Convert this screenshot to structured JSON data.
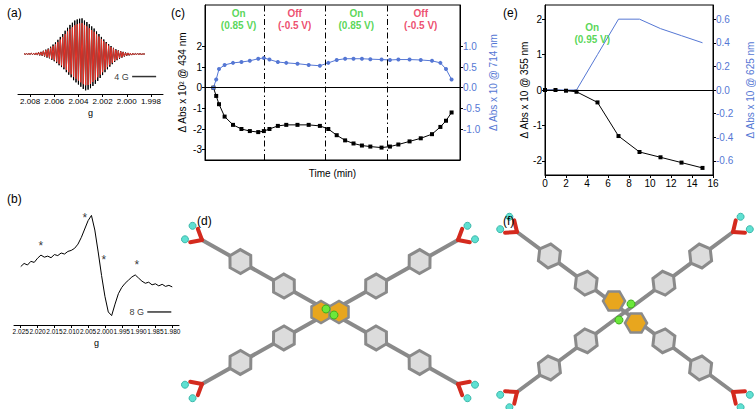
{
  "chart_data": [
    {
      "title": "(a)",
      "type": "line",
      "x_label": "g",
      "tick_labels": "x",
      "xlim": [
        2.009,
        1.997
      ],
      "xticks": [
        2.008,
        2.006,
        2.004,
        2.002,
        {
          "value": 2,
          "label": "2.000"
        },
        1.998
      ],
      "ylim": [
        -1.1,
        1.1
      ],
      "x": [
        2.0085,
        2.0084,
        2.0083,
        2.0082,
        2.0081,
        2.008,
        2.0079,
        2.0078,
        2.0077,
        2.0076,
        2.0075,
        2.0074,
        2.0073,
        2.0072,
        2.0071,
        2.007,
        2.0069,
        2.0068,
        2.0067,
        2.0066,
        2.0065,
        2.0064,
        2.0063,
        2.0062,
        2.0061,
        2.006,
        2.0059,
        2.0058,
        2.0057,
        2.0056,
        2.0055,
        2.0054,
        2.0053,
        2.0052,
        2.0051,
        2.005,
        2.0049,
        2.0048,
        2.0047,
        2.0046,
        2.0045,
        2.0044,
        2.0043,
        2.0042,
        2.0041,
        2.004,
        2.0039,
        2.0038,
        2.0037,
        2.0036,
        2.0035,
        2.0034,
        2.0033,
        2.0032,
        2.0031,
        2.003,
        2.0029,
        2.0028,
        2.0027,
        2.0026,
        2.0025,
        2.0024,
        2.0023,
        2.0022,
        2.0021,
        2.002,
        2.0019,
        2.0018,
        2.0017,
        2.0016,
        2.0015,
        2.0014,
        2.0013,
        2.0012,
        2.0011,
        2.001,
        2.0009,
        2.0008,
        2.0007,
        2.0006,
        2.0005,
        2.0004,
        2.0003,
        2.0002,
        2.0001,
        2,
        1.9999,
        1.9998,
        1.9997,
        1.9996,
        1.9995,
        1.9994,
        1.9993,
        1.9992,
        1.9991,
        1.999,
        1.9989,
        1.9988,
        1.9987,
        1.9986,
        1.9985
      ],
      "series": [
        {
          "color": "#000000",
          "values": [
            0.01,
            -0.01,
            0.01,
            -0.01,
            0.01,
            -0.01,
            0.02,
            -0.02,
            0.02,
            -0.02,
            0.03,
            -0.03,
            0.05,
            -0.04,
            0.06,
            -0.05,
            0.09,
            -0.07,
            0.12,
            -0.1,
            0.15,
            -0.12,
            0.2,
            -0.16,
            0.26,
            -0.2,
            0.32,
            -0.25,
            0.39,
            -0.31,
            0.47,
            -0.36,
            0.55,
            -0.42,
            0.64,
            -0.5,
            0.72,
            -0.57,
            0.8,
            -0.64,
            0.86,
            -0.72,
            0.92,
            -0.78,
            0.95,
            -0.84,
            0.97,
            -0.9,
            0.98,
            -0.96,
            0.92,
            -1.0,
            0.88,
            -0.98,
            0.82,
            -0.94,
            0.76,
            -0.88,
            0.7,
            -0.82,
            0.62,
            -0.74,
            0.55,
            -0.66,
            0.47,
            -0.58,
            0.4,
            -0.5,
            0.33,
            -0.42,
            0.27,
            -0.35,
            0.22,
            -0.28,
            0.17,
            -0.22,
            0.13,
            -0.17,
            0.1,
            -0.13,
            0.08,
            -0.1,
            0.06,
            -0.07,
            0.04,
            -0.05,
            0.03,
            -0.04,
            0.02,
            -0.03,
            0.02,
            -0.02,
            0.01,
            -0.01,
            0.01,
            -0.01,
            0.01,
            -0.01,
            0.0,
            0.0,
            0.0
          ]
        },
        {
          "color": "#e8342a",
          "values": [
            0.01,
            -0.01,
            0.01,
            -0.01,
            0.01,
            -0.01,
            0.02,
            -0.01,
            0.02,
            -0.02,
            0.03,
            -0.02,
            0.04,
            -0.03,
            0.05,
            -0.04,
            0.08,
            -0.06,
            0.1,
            -0.08,
            0.13,
            -0.1,
            0.17,
            -0.13,
            0.22,
            -0.17,
            0.27,
            -0.21,
            0.33,
            -0.27,
            0.4,
            -0.31,
            0.47,
            -0.37,
            0.55,
            -0.44,
            0.62,
            -0.5,
            0.69,
            -0.56,
            0.74,
            -0.63,
            0.79,
            -0.68,
            0.82,
            -0.73,
            0.84,
            -0.78,
            0.85,
            -0.83,
            0.8,
            -0.86,
            0.76,
            -0.85,
            0.71,
            -0.82,
            0.66,
            -0.77,
            0.61,
            -0.71,
            0.54,
            -0.64,
            0.48,
            -0.57,
            0.41,
            -0.5,
            0.35,
            -0.43,
            0.29,
            -0.36,
            0.23,
            -0.3,
            0.19,
            -0.24,
            0.15,
            -0.19,
            0.11,
            -0.15,
            0.09,
            -0.11,
            0.07,
            -0.09,
            0.05,
            -0.06,
            0.03,
            -0.04,
            0.03,
            -0.03,
            0.02,
            -0.03,
            0.02,
            -0.02,
            0.01,
            -0.01,
            0.01,
            -0.01,
            0.01,
            -0.01,
            0.0,
            0.0,
            0.0
          ]
        }
      ],
      "annotations": [
        {
          "text": "4 G",
          "marker": "scale_bar",
          "x": 1.9993,
          "y": -0.62
        }
      ]
    },
    {
      "title": "(b)",
      "type": "line",
      "x_label": "g",
      "tick_labels": "x",
      "xlim": [
        2.027,
        1.978
      ],
      "xticks": [
        2.025,
        {
          "value": 2.02,
          "label": "2.020"
        },
        2.015,
        {
          "value": 2.01,
          "label": "2.010"
        },
        2.005,
        {
          "value": 2,
          "label": "2.000"
        },
        1.995,
        {
          "value": 1.99,
          "label": "1.990"
        },
        1.985,
        {
          "value": 1.98,
          "label": "1.980"
        }
      ],
      "ylim": [
        -1.1,
        1.2
      ],
      "x": [
        2.025,
        2.024,
        2.023,
        2.022,
        2.021,
        2.02,
        2.019,
        2.018,
        2.017,
        2.016,
        2.015,
        2.014,
        2.013,
        2.012,
        2.011,
        2.01,
        2.009,
        2.008,
        2.007,
        2.006,
        2.005,
        2.004,
        2.003,
        2.002,
        2.001,
        2,
        1.999,
        1.998,
        1.997,
        1.996,
        1.995,
        1.994,
        1.993,
        1.992,
        1.991,
        1.99,
        1.989,
        1.988,
        1.987,
        1.986,
        1.985,
        1.984,
        1.983,
        1.982,
        1.981,
        1.98
      ],
      "series": [
        {
          "color": "#000000",
          "values": [
            0.02,
            0.08,
            0.05,
            0.12,
            0.1,
            0.18,
            0.24,
            0.2,
            0.22,
            0.19,
            0.25,
            0.23,
            0.28,
            0.26,
            0.31,
            0.33,
            0.37,
            0.45,
            0.58,
            0.74,
            0.9,
            1.0,
            0.72,
            0.3,
            -0.15,
            -0.55,
            -0.85,
            -0.92,
            -0.7,
            -0.5,
            -0.38,
            -0.3,
            -0.24,
            -0.18,
            -0.14,
            -0.2,
            -0.26,
            -0.3,
            -0.28,
            -0.33,
            -0.31,
            -0.35,
            -0.32,
            -0.36,
            -0.34,
            -0.37
          ]
        }
      ],
      "annotations": [
        {
          "text": "*",
          "x": 2.019,
          "y": 0.42
        },
        {
          "text": "*",
          "x": 2.006,
          "y": 0.95
        },
        {
          "text": "*",
          "x": 2.0003,
          "y": 0.15
        },
        {
          "text": "*",
          "x": 1.9905,
          "y": 0.05
        },
        {
          "text": "8 G",
          "marker": "scale_bar",
          "x": 1.9865,
          "y": -0.85
        }
      ]
    },
    {
      "title": "(c)",
      "type": "line",
      "x_label": "Time (min)",
      "y_label": "Δ Abs x 10² @ 434 nm",
      "y2_label": "Δ Abs x 10 @ 714 nm",
      "tick_labels": "y",
      "xlim": [
        -3,
        88
      ],
      "ylim": [
        -3.5,
        4
      ],
      "yticks": [
        -3,
        -2,
        -1,
        0,
        1,
        2
      ],
      "y2lim": [
        -1.75,
        2
      ],
      "y2ticks": [
        {
          "value": -1,
          "label": "-1.0"
        },
        -0.5,
        {
          "value": 0,
          "label": "0.0"
        },
        0.5,
        {
          "value": 1,
          "label": "1.0"
        }
      ],
      "x": [
        0,
        1,
        2,
        4,
        7,
        10,
        13,
        16,
        18,
        20,
        23,
        26,
        30,
        34,
        38,
        41,
        44,
        47,
        50,
        53,
        56,
        60,
        63,
        66,
        70,
        74,
        78,
        81,
        83,
        85
      ],
      "series": [
        {
          "color": "#000000",
          "marker": "square",
          "values": [
            0,
            -0.4,
            -0.8,
            -1.4,
            -1.8,
            -2.0,
            -2.1,
            -2.15,
            -2.1,
            -2.0,
            -1.85,
            -1.8,
            -1.8,
            -1.8,
            -1.85,
            -2.0,
            -2.3,
            -2.55,
            -2.7,
            -2.8,
            -2.85,
            -2.9,
            -2.85,
            -2.75,
            -2.6,
            -2.45,
            -2.25,
            -1.9,
            -1.6,
            -1.2
          ]
        },
        {
          "color": "#5577d4",
          "marker": "circle",
          "axis": "y2",
          "values": [
            0,
            0.2,
            0.45,
            0.55,
            0.6,
            0.62,
            0.65,
            0.7,
            0.72,
            0.68,
            0.62,
            0.6,
            0.58,
            0.55,
            0.53,
            0.6,
            0.67,
            0.7,
            0.7,
            0.7,
            0.69,
            0.68,
            0.67,
            0.68,
            0.68,
            0.67,
            0.65,
            0.6,
            0.45,
            0.2
          ]
        }
      ],
      "vlines": [
        18,
        40,
        62
      ],
      "hlines": [
        0
      ],
      "annotations": [
        {
          "lines": [
            "On",
            "(0.85 V)"
          ],
          "color": "#2ecc2e",
          "x": 9,
          "y": 3.3
        },
        {
          "lines": [
            "Off",
            "(-0.5 V)"
          ],
          "color": "#e8214a",
          "x": 29,
          "y": 3.3
        },
        {
          "lines": [
            "On",
            "(0.85 V)"
          ],
          "color": "#2ecc2e",
          "x": 51,
          "y": 3.3
        },
        {
          "lines": [
            "Off",
            "(-0.5 V)"
          ],
          "color": "#e8214a",
          "x": 74,
          "y": 3.3
        }
      ]
    },
    {
      "title": "(e)",
      "type": "line",
      "y_label": "Δ Abs x 10 @ 355 nm",
      "y2_label": "Δ Abs x 10 @ 625 nm",
      "xlim": [
        0,
        16
      ],
      "xticks": [
        0,
        2,
        4,
        6,
        8,
        10,
        12,
        14,
        16
      ],
      "ylim": [
        -2.4,
        2.4
      ],
      "yticks": [
        -2,
        -1,
        0,
        1,
        2
      ],
      "y2lim": [
        -0.72,
        0.72
      ],
      "y2ticks": [
        -0.6,
        -0.4,
        -0.2,
        {
          "value": 0,
          "label": "0.0"
        },
        0.2,
        0.4,
        0.6
      ],
      "x": [
        0,
        1,
        2,
        3,
        5,
        7,
        9,
        11,
        13,
        15
      ],
      "series": [
        {
          "color": "#000000",
          "marker": "square",
          "values": [
            0,
            0,
            -0.02,
            -0.05,
            -0.35,
            -1.3,
            -1.75,
            -1.9,
            -2.05,
            -2.2
          ]
        },
        {
          "color": "#5577d4",
          "marker": "none",
          "axis": "y2",
          "values": [
            0,
            0,
            0,
            0,
            0.3,
            0.6,
            0.6,
            0.52,
            0.46,
            0.4
          ]
        }
      ],
      "hlines": [
        0
      ],
      "annotations": [
        {
          "lines": [
            "On",
            "(0.95 V)"
          ],
          "color": "#2ecc2e",
          "x": 4.5,
          "y": 1.6
        }
      ]
    }
  ],
  "structures": [
    {
      "title": "(d)"
    },
    {
      "title": "(f)"
    }
  ]
}
